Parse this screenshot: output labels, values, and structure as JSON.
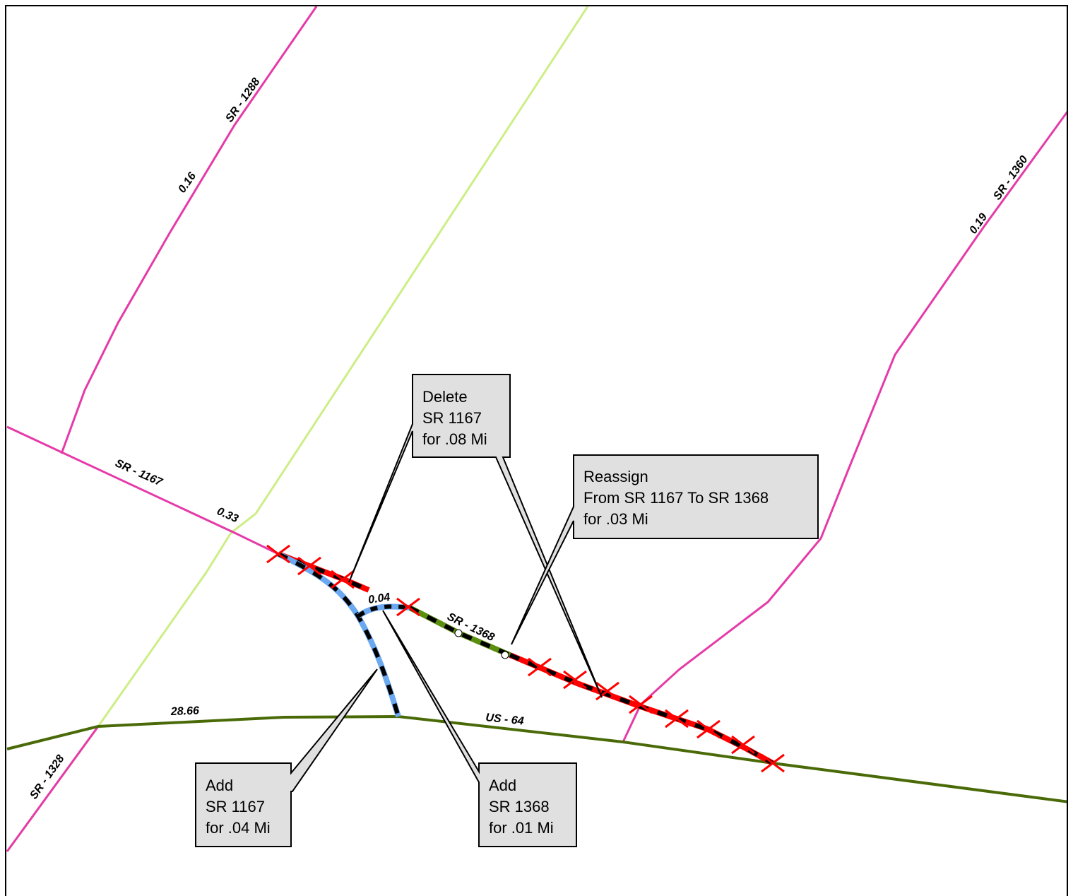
{
  "colors": {
    "state_route": "#e53aa8",
    "us_route": "#4a6a08",
    "light_line": "#cdee86",
    "delete": "#ff0000",
    "add": "#6aa8f0",
    "reassign": "#5a8f10",
    "callout_fill": "#e0e0e0"
  },
  "labels": {
    "sr1288": "SR - 1288",
    "sr1288_mi": "0.16",
    "sr1360": "SR - 1360",
    "sr1360_mi": "0.19",
    "sr1167": "SR - 1167",
    "sr1167_mi": "0.33",
    "sr1368": "SR - 1368",
    "sr1368_mi": "0.04",
    "us64": "US - 64",
    "us64_mi": "28.66",
    "sr1328": "SR - 1328"
  },
  "callouts": {
    "delete": [
      "Delete",
      "SR 1167",
      "for .08 Mi"
    ],
    "reassign": [
      "Reassign",
      "From SR 1167 To SR 1368",
      "for .03 Mi"
    ],
    "add1167": [
      "Add",
      "SR 1167",
      "for .04 Mi"
    ],
    "add1368": [
      "Add",
      "SR 1368",
      "for .01 Mi"
    ]
  }
}
